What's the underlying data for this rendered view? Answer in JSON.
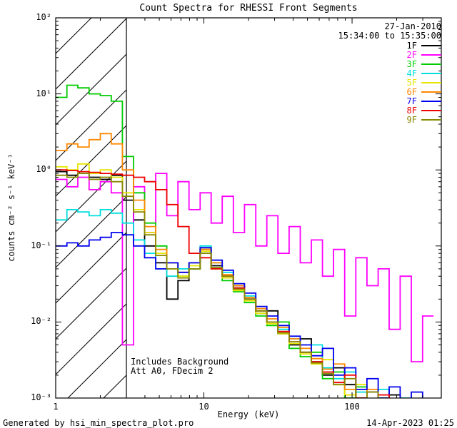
{
  "title": "Count Spectra for RHESSI Front Segments",
  "header": {
    "date": "27-Jan-2010",
    "time_range": "15:34:00 to 15:35:00"
  },
  "annotations": {
    "line1": "Includes Background",
    "line2": "Att A0, FDecim 2"
  },
  "footer": {
    "left": "Generated by hsi_min_spectra_plot.pro",
    "right": "14-Apr-2023 01:25"
  },
  "chart_data": {
    "type": "line",
    "line_style": "histogram-step",
    "title": "Count Spectra for RHESSI Front Segments",
    "xlabel": "Energy (keV)",
    "ylabel": "counts cm⁻² s⁻¹ keV⁻¹",
    "xscale": "log",
    "yscale": "log",
    "xlim": [
      1,
      400
    ],
    "ylim": [
      0.001,
      100
    ],
    "grid": false,
    "legend_position": "top-right-inside",
    "hatch_region": {
      "x_min": 1,
      "x_max": 3
    },
    "x_ticks": [
      {
        "value": 1,
        "label": "1"
      },
      {
        "value": 10,
        "label": "10"
      },
      {
        "value": 100,
        "label": "100"
      }
    ],
    "y_ticks": [
      {
        "value": 0.001,
        "label": "10⁻³"
      },
      {
        "value": 0.01,
        "label": "10⁻²"
      },
      {
        "value": 0.1,
        "label": "10⁻¹"
      },
      {
        "value": 1,
        "label": "10⁰"
      },
      {
        "value": 10,
        "label": "10¹"
      },
      {
        "value": 100,
        "label": "10²"
      }
    ],
    "bin_edges": [
      1.0,
      1.19,
      1.41,
      1.68,
      2.0,
      2.37,
      2.82,
      3.35,
      3.98,
      4.73,
      5.62,
      6.68,
      7.94,
      9.44,
      11.2,
      13.3,
      15.8,
      18.8,
      22.4,
      26.6,
      31.6,
      37.6,
      44.7,
      53.1,
      63.1,
      75.0,
      89.1,
      106,
      126,
      150,
      178,
      211,
      251,
      299,
      355
    ],
    "series": [
      {
        "name": "1F",
        "color": "#000000",
        "values": [
          0.95,
          0.85,
          0.9,
          0.8,
          0.75,
          0.85,
          0.4,
          0.22,
          0.1,
          0.06,
          0.02,
          0.035,
          0.05,
          0.09,
          0.055,
          0.04,
          0.03,
          0.02,
          0.013,
          0.014,
          0.007,
          0.005,
          0.006,
          0.003,
          0.002,
          0.0025,
          0.0015,
          0.001,
          0.0012,
          0.0008,
          0.0011,
          0.0007,
          0.0009,
          0.0006
        ]
      },
      {
        "name": "2F",
        "color": "#FF00FF",
        "values": [
          0.75,
          0.6,
          0.8,
          0.55,
          0.7,
          0.5,
          0.005,
          0.6,
          0.15,
          0.9,
          0.25,
          0.7,
          0.3,
          0.5,
          0.2,
          0.45,
          0.15,
          0.35,
          0.1,
          0.25,
          0.08,
          0.18,
          0.06,
          0.12,
          0.04,
          0.09,
          0.012,
          0.07,
          0.03,
          0.05,
          0.008,
          0.04,
          0.003,
          0.012
        ]
      },
      {
        "name": "3F",
        "color": "#00CC00",
        "values": [
          9,
          13,
          12,
          10,
          9.5,
          8,
          1.5,
          0.5,
          0.2,
          0.1,
          0.06,
          0.04,
          0.05,
          0.08,
          0.05,
          0.035,
          0.025,
          0.018,
          0.012,
          0.009,
          0.01,
          0.0045,
          0.0035,
          0.004,
          0.0018,
          0.0022,
          0.001,
          0.0014,
          0.0007,
          0.001,
          0.0005,
          0.0008,
          0.0004,
          0.0007
        ]
      },
      {
        "name": "4F",
        "color": "#00DDDD",
        "values": [
          0.22,
          0.3,
          0.28,
          0.25,
          0.3,
          0.27,
          0.2,
          0.12,
          0.08,
          0.05,
          0.04,
          0.05,
          0.06,
          0.1,
          0.06,
          0.045,
          0.028,
          0.022,
          0.014,
          0.01,
          0.008,
          0.006,
          0.004,
          0.005,
          0.0025,
          0.0018,
          0.0022,
          0.0012,
          0.0009,
          0.0013,
          0.0006,
          0.001,
          0.0005,
          0.0008
        ]
      },
      {
        "name": "5F",
        "color": "#E6E600",
        "values": [
          1.1,
          1.0,
          1.2,
          0.9,
          1.0,
          0.8,
          0.5,
          0.3,
          0.15,
          0.08,
          0.05,
          0.04,
          0.055,
          0.085,
          0.05,
          0.038,
          0.026,
          0.019,
          0.013,
          0.0095,
          0.007,
          0.0052,
          0.0038,
          0.0028,
          0.0032,
          0.0015,
          0.0011,
          0.0015,
          0.0008,
          0.0006,
          0.0009,
          0.0005,
          0.0007,
          0.0004
        ]
      },
      {
        "name": "6F",
        "color": "#FF8800",
        "values": [
          1.8,
          2.2,
          2.0,
          2.5,
          3.0,
          2.2,
          1.0,
          0.4,
          0.18,
          0.09,
          0.06,
          0.045,
          0.06,
          0.09,
          0.06,
          0.042,
          0.03,
          0.021,
          0.015,
          0.011,
          0.0085,
          0.006,
          0.0045,
          0.0033,
          0.0024,
          0.0028,
          0.0013,
          0.0009,
          0.0013,
          0.0007,
          0.0005,
          0.0008,
          0.0004,
          0.0006
        ]
      },
      {
        "name": "7F",
        "color": "#0000EE",
        "values": [
          0.1,
          0.11,
          0.1,
          0.12,
          0.13,
          0.15,
          0.14,
          0.1,
          0.07,
          0.05,
          0.06,
          0.045,
          0.06,
          0.095,
          0.065,
          0.048,
          0.032,
          0.024,
          0.016,
          0.012,
          0.009,
          0.0065,
          0.005,
          0.0036,
          0.0045,
          0.002,
          0.0025,
          0.0013,
          0.0018,
          0.001,
          0.0014,
          0.0008,
          0.0012,
          0.0009
        ]
      },
      {
        "name": "8F",
        "color": "#EE0000",
        "values": [
          1.0,
          0.98,
          0.95,
          0.93,
          0.9,
          0.88,
          0.85,
          0.8,
          0.7,
          0.55,
          0.35,
          0.18,
          0.08,
          0.07,
          0.05,
          0.04,
          0.028,
          0.02,
          0.014,
          0.01,
          0.0075,
          0.0055,
          0.004,
          0.003,
          0.0022,
          0.0016,
          0.002,
          0.001,
          0.0007,
          0.0011,
          0.0006,
          0.0009,
          0.0005,
          0.0003
        ]
      },
      {
        "name": "9F",
        "color": "#888800",
        "values": [
          0.85,
          0.8,
          0.9,
          0.75,
          0.8,
          0.7,
          0.45,
          0.28,
          0.14,
          0.075,
          0.05,
          0.038,
          0.05,
          0.08,
          0.052,
          0.04,
          0.027,
          0.02,
          0.014,
          0.01,
          0.0072,
          0.0055,
          0.004,
          0.0029,
          0.0021,
          0.0015,
          0.0018,
          0.0009,
          0.0012,
          0.0006,
          0.0008,
          0.0004,
          0.0006,
          0.0005
        ]
      }
    ]
  }
}
